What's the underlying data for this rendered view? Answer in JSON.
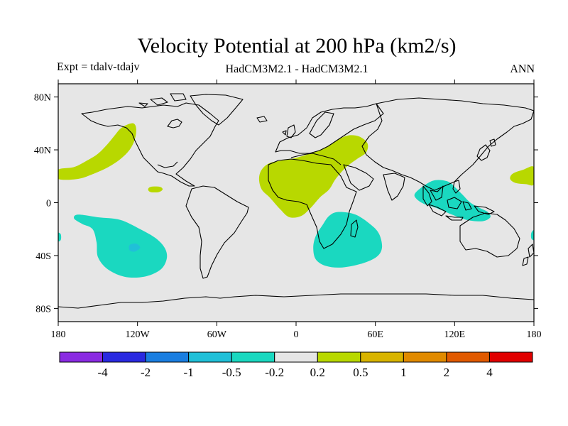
{
  "chart_data": {
    "type": "heatmap",
    "title": "Velocity Potential at 200 hPa (km2/s)",
    "subtitle_left": "Expt = tdalv-tdajv",
    "subtitle_center": "HadCM3M2.1 - HadCM3M2.1",
    "subtitle_right": "ANN",
    "xlim": [
      -180,
      180
    ],
    "ylim": [
      -90,
      90
    ],
    "x_ticks": [
      {
        "value": -180,
        "label": "180"
      },
      {
        "value": -120,
        "label": "120W"
      },
      {
        "value": -60,
        "label": "60W"
      },
      {
        "value": 0,
        "label": "0"
      },
      {
        "value": 60,
        "label": "60E"
      },
      {
        "value": 120,
        "label": "120E"
      },
      {
        "value": 180,
        "label": "180"
      }
    ],
    "y_ticks": [
      {
        "value": 80,
        "label": "80N"
      },
      {
        "value": 40,
        "label": "40N"
      },
      {
        "value": 0,
        "label": "0"
      },
      {
        "value": -40,
        "label": "40S"
      },
      {
        "value": -80,
        "label": "80S"
      }
    ],
    "colorbar": {
      "colors": [
        "#8a2be2",
        "#2a2ae0",
        "#1a7ee0",
        "#20c0d8",
        "#1ad8c0",
        "#e6e6e6",
        "#b8d800",
        "#d8b400",
        "#e08a00",
        "#e05a00",
        "#e00000"
      ],
      "labels": [
        "-4",
        "-2",
        "-1",
        "-0.5",
        "-0.2",
        "0.2",
        "0.5",
        "1",
        "2",
        "4"
      ]
    },
    "regions": [
      {
        "name": "north-pacific-positive",
        "level": "0.2 to 0.5",
        "color": "#b8d800",
        "lonlat": [
          [
            -180,
            25
          ],
          [
            -168,
            27
          ],
          [
            -158,
            32
          ],
          [
            -150,
            37
          ],
          [
            -143,
            44
          ],
          [
            -138,
            50
          ],
          [
            -133,
            56
          ],
          [
            -128,
            59
          ],
          [
            -123,
            60
          ],
          [
            -121,
            56
          ],
          [
            -122,
            48
          ],
          [
            -126,
            40
          ],
          [
            -133,
            33
          ],
          [
            -142,
            27
          ],
          [
            -153,
            22
          ],
          [
            -165,
            18
          ],
          [
            -180,
            18
          ]
        ]
      },
      {
        "name": "north-pacific-positive-small",
        "level": "0.2 to 0.5",
        "color": "#b8d800",
        "lonlat": [
          [
            -110,
            12
          ],
          [
            -103,
            12
          ],
          [
            -101,
            10
          ],
          [
            -104,
            8
          ],
          [
            -110,
            8
          ],
          [
            -112,
            10
          ]
        ]
      },
      {
        "name": "dateline-positive",
        "level": "0.2 to 0.5",
        "color": "#b8d800",
        "lonlat": [
          [
            180,
            27
          ],
          [
            172,
            25
          ],
          [
            164,
            22
          ],
          [
            162,
            18
          ],
          [
            166,
            15
          ],
          [
            174,
            14
          ],
          [
            180,
            14
          ]
        ]
      },
      {
        "name": "africa-eurasia-positive",
        "level": "0.2 to 0.5",
        "color": "#b8d800",
        "lonlat": [
          [
            -28,
            18
          ],
          [
            -26,
            25
          ],
          [
            -20,
            30
          ],
          [
            -10,
            32
          ],
          [
            0,
            34
          ],
          [
            10,
            37
          ],
          [
            18,
            40
          ],
          [
            26,
            44
          ],
          [
            32,
            48
          ],
          [
            40,
            51
          ],
          [
            48,
            50
          ],
          [
            54,
            45
          ],
          [
            53,
            38
          ],
          [
            46,
            33
          ],
          [
            38,
            27
          ],
          [
            30,
            18
          ],
          [
            25,
            10
          ],
          [
            18,
            4
          ],
          [
            11,
            -4
          ],
          [
            4,
            -10
          ],
          [
            -5,
            -11
          ],
          [
            -12,
            -5
          ],
          [
            -20,
            4
          ],
          [
            -26,
            10
          ]
        ]
      },
      {
        "name": "southeast-pacific-negative",
        "level": "-0.5 to -0.2",
        "color": "#1ad8c0",
        "lonlat": [
          [
            -165,
            -9
          ],
          [
            -150,
            -11
          ],
          [
            -133,
            -13
          ],
          [
            -118,
            -20
          ],
          [
            -106,
            -27
          ],
          [
            -99,
            -35
          ],
          [
            -98,
            -43
          ],
          [
            -103,
            -51
          ],
          [
            -115,
            -56
          ],
          [
            -130,
            -56
          ],
          [
            -143,
            -50
          ],
          [
            -150,
            -41
          ],
          [
            -151,
            -30
          ],
          [
            -154,
            -20
          ],
          [
            -162,
            -16
          ],
          [
            -168,
            -12
          ]
        ]
      },
      {
        "name": "southeast-pacific-negative-core",
        "level": "-1 to -0.5",
        "color": "#20c0d8",
        "lonlat": [
          [
            -126,
            -32
          ],
          [
            -121,
            -31
          ],
          [
            -118,
            -34
          ],
          [
            -122,
            -37
          ],
          [
            -126,
            -36
          ]
        ]
      },
      {
        "name": "south-africa-indian-negative",
        "level": "-0.5 to -0.2",
        "color": "#1ad8c0",
        "lonlat": [
          [
            32,
            -7
          ],
          [
            45,
            -9
          ],
          [
            57,
            -17
          ],
          [
            63,
            -24
          ],
          [
            65,
            -34
          ],
          [
            61,
            -41
          ],
          [
            50,
            -46
          ],
          [
            35,
            -49
          ],
          [
            23,
            -48
          ],
          [
            15,
            -43
          ],
          [
            13,
            -34
          ],
          [
            15,
            -25
          ],
          [
            20,
            -17
          ],
          [
            25,
            -10
          ]
        ]
      },
      {
        "name": "maritime-continent-negative",
        "level": "-0.5 to -0.2",
        "color": "#1ad8c0",
        "lonlat": [
          [
            90,
            7
          ],
          [
            97,
            13
          ],
          [
            105,
            17
          ],
          [
            115,
            16
          ],
          [
            121,
            11
          ],
          [
            126,
            6
          ],
          [
            132,
            0
          ],
          [
            139,
            -4
          ],
          [
            145,
            -7
          ],
          [
            147,
            -11
          ],
          [
            141,
            -14
          ],
          [
            129,
            -13
          ],
          [
            118,
            -9
          ],
          [
            106,
            -4
          ],
          [
            97,
            -1
          ],
          [
            91,
            3
          ]
        ]
      },
      {
        "name": "west-edge-negative",
        "level": "-0.5 to -0.2",
        "color": "#1ad8c0",
        "lonlat": [
          [
            -180,
            -23
          ],
          [
            -178,
            -24
          ],
          [
            -178,
            -28
          ],
          [
            -180,
            -29
          ]
        ]
      },
      {
        "name": "east-edge-negative",
        "level": "-0.5 to -0.2",
        "color": "#1ad8c0",
        "lonlat": [
          [
            180,
            -21
          ],
          [
            178,
            -23
          ],
          [
            178,
            -27
          ],
          [
            180,
            -28
          ]
        ]
      }
    ]
  }
}
